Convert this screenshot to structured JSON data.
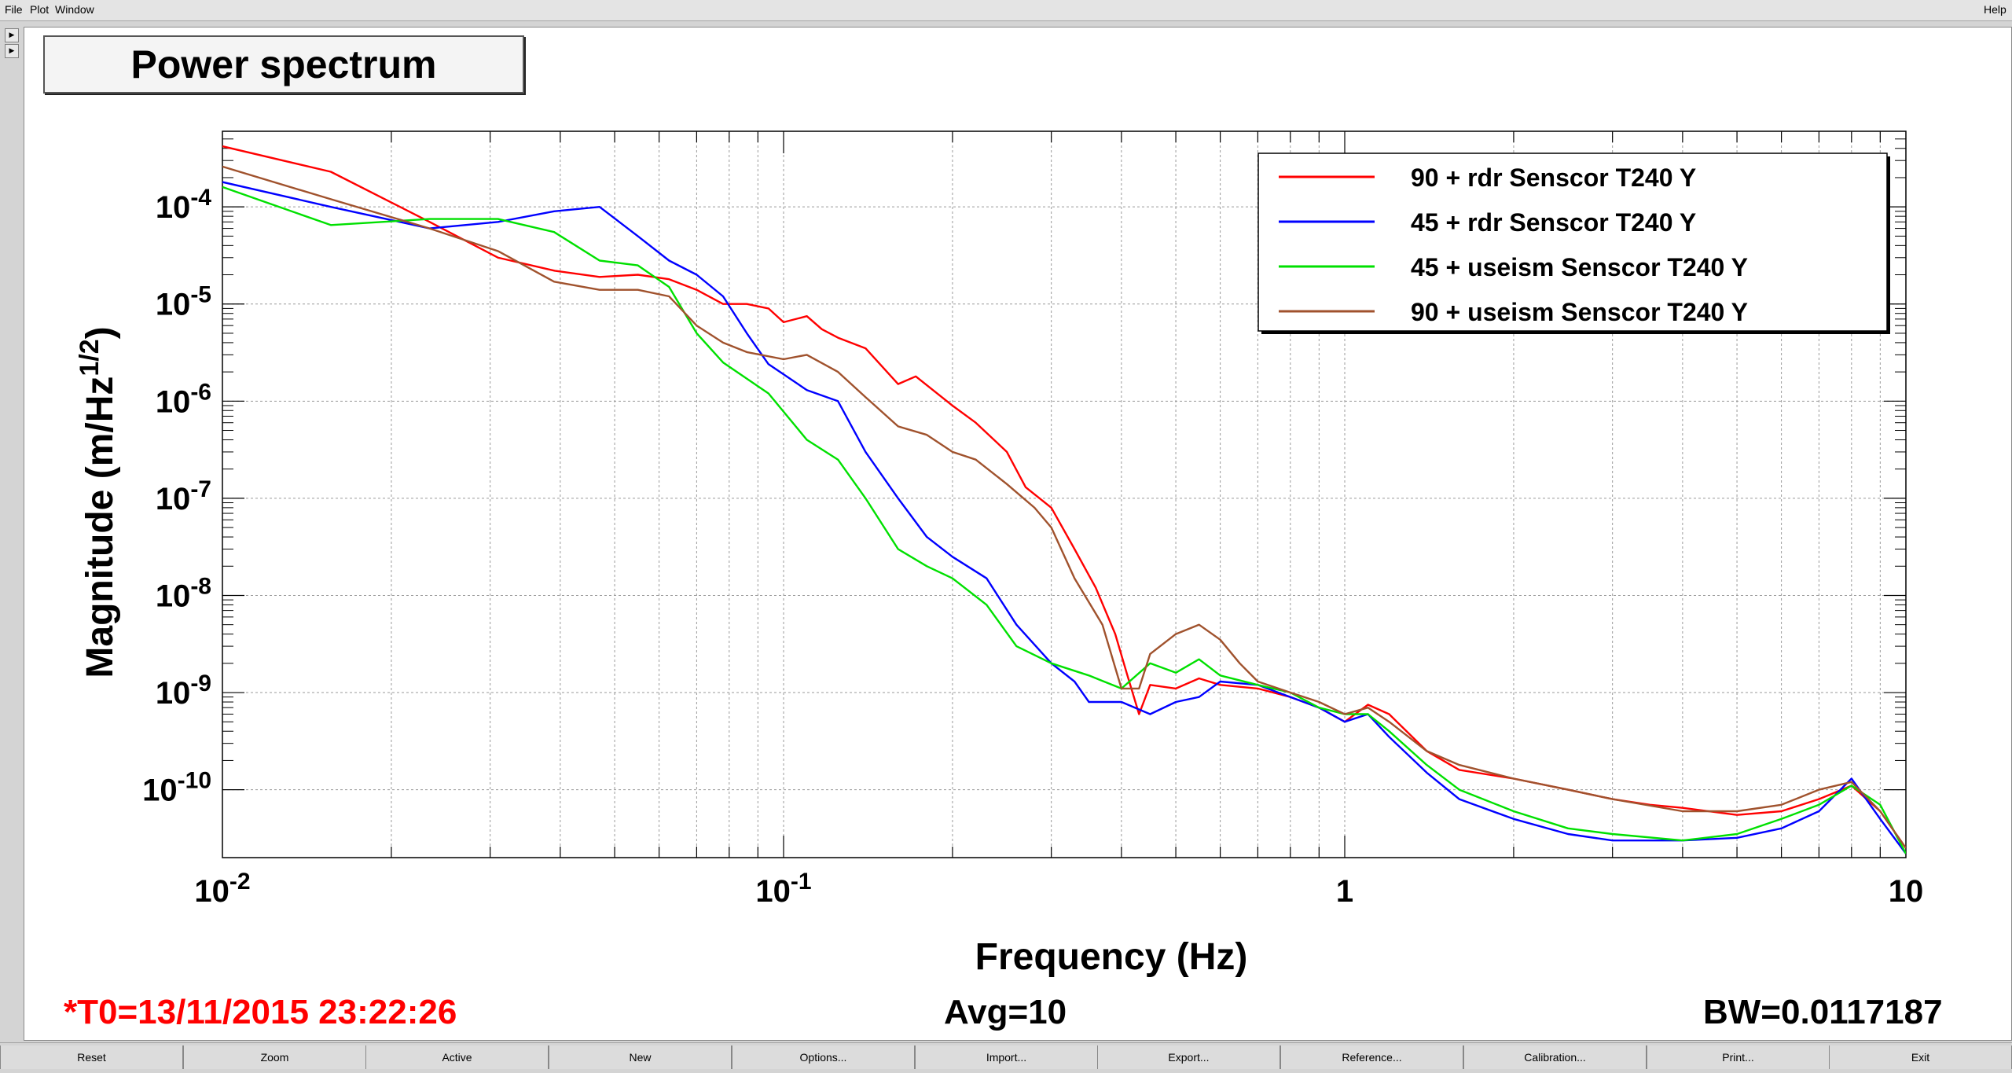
{
  "menubar": {
    "items": [
      {
        "label": "File"
      },
      {
        "label": "Plot"
      },
      {
        "label": "Window"
      }
    ],
    "help_label": "Help"
  },
  "side_arrows": [
    "right-arrow-icon",
    "right-arrow-icon"
  ],
  "canvas": {
    "title": "Power spectrum",
    "t0": "*T0=13/11/2015 23:22:26",
    "avg": "Avg=10",
    "bw": "BW=0.0117187",
    "colors": {
      "t0_text": "#ff0000"
    }
  },
  "toolbar": {
    "buttons": [
      "Reset",
      "Zoom",
      "Active",
      "New",
      "Options...",
      "Import...",
      "Export...",
      "Reference...",
      "Calibration...",
      "Print...",
      "Exit"
    ]
  },
  "chart_data": {
    "type": "line",
    "title": "Power spectrum",
    "xlabel": "Frequency (Hz)",
    "ylabel": "Magnitude (m/Hz^1/2)",
    "xscale": "log",
    "yscale": "log",
    "xlim": [
      0.01,
      10
    ],
    "ylim": [
      2e-11,
      0.0006
    ],
    "grid": true,
    "legend_position": "top-right",
    "x_ticks": [
      "10^-2",
      "10^-1",
      "1",
      "10"
    ],
    "y_ticks": [
      "10^-10",
      "10^-9",
      "10^-8",
      "10^-7",
      "10^-6",
      "10^-5",
      "10^-4"
    ],
    "series": [
      {
        "name": "90 + rdr Senscor T240 Y",
        "color": "#ff0000",
        "points": [
          [
            0.01,
            0.00042
          ],
          [
            0.0156,
            0.00023
          ],
          [
            0.0234,
            7e-05
          ],
          [
            0.031,
            3e-05
          ],
          [
            0.0391,
            2.2e-05
          ],
          [
            0.047,
            1.9e-05
          ],
          [
            0.055,
            2e-05
          ],
          [
            0.0625,
            1.8e-05
          ],
          [
            0.07,
            1.4e-05
          ],
          [
            0.078,
            1e-05
          ],
          [
            0.086,
            1e-05
          ],
          [
            0.094,
            9e-06
          ],
          [
            0.1,
            6.5e-06
          ],
          [
            0.11,
            7.5e-06
          ],
          [
            0.117,
            5.5e-06
          ],
          [
            0.125,
            4.5e-06
          ],
          [
            0.14,
            3.5e-06
          ],
          [
            0.16,
            1.5e-06
          ],
          [
            0.172,
            1.8e-06
          ],
          [
            0.2,
            9e-07
          ],
          [
            0.22,
            6e-07
          ],
          [
            0.25,
            3e-07
          ],
          [
            0.27,
            1.3e-07
          ],
          [
            0.3,
            8e-08
          ],
          [
            0.33,
            3e-08
          ],
          [
            0.36,
            1.2e-08
          ],
          [
            0.39,
            4e-09
          ],
          [
            0.41,
            1.5e-09
          ],
          [
            0.43,
            6e-10
          ],
          [
            0.45,
            1.2e-09
          ],
          [
            0.5,
            1.1e-09
          ],
          [
            0.55,
            1.4e-09
          ],
          [
            0.6,
            1.2e-09
          ],
          [
            0.7,
            1.1e-09
          ],
          [
            0.8,
            9e-10
          ],
          [
            0.9,
            7e-10
          ],
          [
            1.0,
            5e-10
          ],
          [
            1.1,
            7.5e-10
          ],
          [
            1.2,
            6e-10
          ],
          [
            1.4,
            2.5e-10
          ],
          [
            1.6,
            1.6e-10
          ],
          [
            2.0,
            1.3e-10
          ],
          [
            2.5,
            1e-10
          ],
          [
            3.0,
            8e-11
          ],
          [
            3.5,
            7e-11
          ],
          [
            4.0,
            6.5e-11
          ],
          [
            5.0,
            5.5e-11
          ],
          [
            6.0,
            6e-11
          ],
          [
            7.0,
            8e-11
          ],
          [
            8.0,
            1.1e-10
          ],
          [
            9.0,
            6e-11
          ],
          [
            10,
            2.5e-11
          ]
        ]
      },
      {
        "name": "45 + rdr Senscor T240 Y",
        "color": "#0000ff",
        "points": [
          [
            0.01,
            0.00018
          ],
          [
            0.0156,
            0.0001
          ],
          [
            0.0234,
            6e-05
          ],
          [
            0.031,
            7e-05
          ],
          [
            0.039,
            9e-05
          ],
          [
            0.047,
            0.0001
          ],
          [
            0.055,
            5e-05
          ],
          [
            0.0625,
            2.8e-05
          ],
          [
            0.07,
            2e-05
          ],
          [
            0.078,
            1.2e-05
          ],
          [
            0.086,
            5e-06
          ],
          [
            0.094,
            2.4e-06
          ],
          [
            0.11,
            1.3e-06
          ],
          [
            0.125,
            1e-06
          ],
          [
            0.14,
            3e-07
          ],
          [
            0.16,
            1e-07
          ],
          [
            0.18,
            4e-08
          ],
          [
            0.2,
            2.5e-08
          ],
          [
            0.23,
            1.5e-08
          ],
          [
            0.26,
            5e-09
          ],
          [
            0.3,
            2e-09
          ],
          [
            0.33,
            1.3e-09
          ],
          [
            0.35,
            8e-10
          ],
          [
            0.4,
            8e-10
          ],
          [
            0.45,
            6e-10
          ],
          [
            0.5,
            8e-10
          ],
          [
            0.55,
            9e-10
          ],
          [
            0.6,
            1.3e-09
          ],
          [
            0.7,
            1.2e-09
          ],
          [
            0.8,
            9e-10
          ],
          [
            0.9,
            7e-10
          ],
          [
            1.0,
            5e-10
          ],
          [
            1.1,
            6e-10
          ],
          [
            1.2,
            3.5e-10
          ],
          [
            1.4,
            1.5e-10
          ],
          [
            1.6,
            8e-11
          ],
          [
            2.0,
            5e-11
          ],
          [
            2.5,
            3.5e-11
          ],
          [
            3.0,
            3e-11
          ],
          [
            4.0,
            3e-11
          ],
          [
            5.0,
            3.2e-11
          ],
          [
            6.0,
            4e-11
          ],
          [
            7.0,
            6e-11
          ],
          [
            8.0,
            1.3e-10
          ],
          [
            9.0,
            5e-11
          ],
          [
            10,
            2.2e-11
          ]
        ]
      },
      {
        "name": "45 + useism Senscor T240 Y",
        "color": "#00e000",
        "points": [
          [
            0.01,
            0.00016
          ],
          [
            0.0156,
            6.5e-05
          ],
          [
            0.0234,
            7.5e-05
          ],
          [
            0.031,
            7.5e-05
          ],
          [
            0.039,
            5.5e-05
          ],
          [
            0.047,
            2.8e-05
          ],
          [
            0.055,
            2.5e-05
          ],
          [
            0.0625,
            1.5e-05
          ],
          [
            0.07,
            5e-06
          ],
          [
            0.078,
            2.5e-06
          ],
          [
            0.094,
            1.2e-06
          ],
          [
            0.11,
            4e-07
          ],
          [
            0.125,
            2.5e-07
          ],
          [
            0.14,
            1e-07
          ],
          [
            0.16,
            3e-08
          ],
          [
            0.18,
            2e-08
          ],
          [
            0.2,
            1.5e-08
          ],
          [
            0.23,
            8e-09
          ],
          [
            0.26,
            3e-09
          ],
          [
            0.3,
            2e-09
          ],
          [
            0.35,
            1.5e-09
          ],
          [
            0.4,
            1.1e-09
          ],
          [
            0.45,
            2e-09
          ],
          [
            0.5,
            1.6e-09
          ],
          [
            0.55,
            2.2e-09
          ],
          [
            0.6,
            1.5e-09
          ],
          [
            0.7,
            1.2e-09
          ],
          [
            0.8,
            1e-09
          ],
          [
            0.9,
            7e-10
          ],
          [
            1.0,
            6e-10
          ],
          [
            1.1,
            6e-10
          ],
          [
            1.2,
            4e-10
          ],
          [
            1.4,
            1.8e-10
          ],
          [
            1.6,
            1e-10
          ],
          [
            2.0,
            6e-11
          ],
          [
            2.5,
            4e-11
          ],
          [
            3.0,
            3.5e-11
          ],
          [
            4.0,
            3e-11
          ],
          [
            5.0,
            3.5e-11
          ],
          [
            6.0,
            5e-11
          ],
          [
            7.0,
            7e-11
          ],
          [
            8.0,
            1.1e-10
          ],
          [
            9.0,
            7e-11
          ],
          [
            10,
            2.2e-11
          ]
        ]
      },
      {
        "name": "90 + useism Senscor T240 Y",
        "color": "#a0522d",
        "points": [
          [
            0.01,
            0.00026
          ],
          [
            0.0156,
            0.00012
          ],
          [
            0.0234,
            6e-05
          ],
          [
            0.031,
            3.5e-05
          ],
          [
            0.039,
            1.7e-05
          ],
          [
            0.047,
            1.4e-05
          ],
          [
            0.055,
            1.4e-05
          ],
          [
            0.0625,
            1.2e-05
          ],
          [
            0.07,
            6e-06
          ],
          [
            0.078,
            4e-06
          ],
          [
            0.086,
            3.2e-06
          ],
          [
            0.1,
            2.7e-06
          ],
          [
            0.11,
            3e-06
          ],
          [
            0.125,
            2e-06
          ],
          [
            0.14,
            1.1e-06
          ],
          [
            0.16,
            5.5e-07
          ],
          [
            0.18,
            4.5e-07
          ],
          [
            0.2,
            3e-07
          ],
          [
            0.22,
            2.5e-07
          ],
          [
            0.25,
            1.4e-07
          ],
          [
            0.28,
            8e-08
          ],
          [
            0.3,
            5e-08
          ],
          [
            0.33,
            1.5e-08
          ],
          [
            0.37,
            5e-09
          ],
          [
            0.4,
            1.1e-09
          ],
          [
            0.43,
            1.1e-09
          ],
          [
            0.45,
            2.5e-09
          ],
          [
            0.5,
            4e-09
          ],
          [
            0.55,
            5e-09
          ],
          [
            0.6,
            3.5e-09
          ],
          [
            0.65,
            2e-09
          ],
          [
            0.7,
            1.3e-09
          ],
          [
            0.8,
            1e-09
          ],
          [
            0.9,
            8e-10
          ],
          [
            1.0,
            6e-10
          ],
          [
            1.1,
            7e-10
          ],
          [
            1.2,
            5e-10
          ],
          [
            1.4,
            2.5e-10
          ],
          [
            1.6,
            1.8e-10
          ],
          [
            2.0,
            1.3e-10
          ],
          [
            2.5,
            1e-10
          ],
          [
            3.0,
            8e-11
          ],
          [
            4.0,
            6e-11
          ],
          [
            5.0,
            6e-11
          ],
          [
            6.0,
            7e-11
          ],
          [
            7.0,
            1e-10
          ],
          [
            8.0,
            1.2e-10
          ],
          [
            9.0,
            6e-11
          ],
          [
            10,
            2.5e-11
          ]
        ]
      }
    ]
  }
}
